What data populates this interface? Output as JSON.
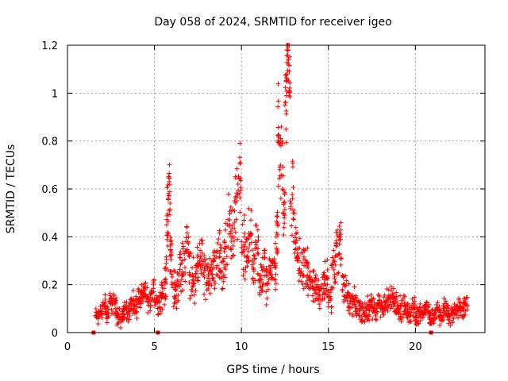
{
  "chart_data": {
    "type": "scatter",
    "title": "Day 058 of 2024, SRMTID for receiver igeo",
    "xlabel": "GPS time / hours",
    "ylabel": "SRMTID / TECUs",
    "xlim": [
      0,
      24
    ],
    "ylim": [
      0,
      1.2
    ],
    "xticks": [
      0,
      5,
      10,
      15,
      20
    ],
    "xtick_labels": [
      "0",
      "5",
      "10",
      "15",
      "20"
    ],
    "yticks": [
      0,
      0.2,
      0.4,
      0.6,
      0.8,
      1.0,
      1.2
    ],
    "ytick_labels": [
      "0",
      "0.2",
      "0.4",
      "0.6",
      "0.8",
      "1",
      "1.2"
    ],
    "grid": true,
    "marker": "plus",
    "color": "#ff0000",
    "series": [
      {
        "name": "SRMTID",
        "x": [
          1.6,
          1.8,
          2.0,
          2.2,
          2.4,
          2.6,
          2.8,
          3.0,
          3.2,
          3.4,
          3.6,
          3.8,
          4.0,
          4.2,
          4.4,
          4.6,
          4.8,
          5.0,
          5.2,
          5.4,
          5.6,
          5.7,
          5.8,
          5.9,
          6.0,
          6.2,
          6.4,
          6.6,
          6.8,
          7.0,
          7.2,
          7.4,
          7.6,
          7.8,
          8.0,
          8.2,
          8.4,
          8.6,
          8.8,
          9.0,
          9.2,
          9.4,
          9.6,
          9.8,
          10.0,
          10.2,
          10.4,
          10.6,
          10.8,
          11.0,
          11.2,
          11.4,
          11.6,
          11.8,
          12.0,
          12.1,
          12.2,
          12.4,
          12.5,
          12.6,
          12.7,
          12.8,
          13.0,
          13.2,
          13.4,
          13.6,
          13.8,
          14.0,
          14.2,
          14.4,
          14.6,
          14.8,
          15.0,
          15.2,
          15.4,
          15.6,
          15.8,
          16.0,
          16.2,
          16.4,
          16.6,
          16.8,
          17.0,
          17.2,
          17.4,
          17.6,
          17.8,
          18.0,
          18.2,
          18.4,
          18.6,
          18.8,
          19.0,
          19.2,
          19.4,
          19.6,
          19.8,
          20.0,
          20.2,
          20.4,
          20.6,
          20.8,
          21.0,
          21.2,
          21.4,
          21.6,
          21.8,
          22.0,
          22.2,
          22.4,
          22.6,
          22.8
        ],
        "y": [
          0.07,
          0.09,
          0.11,
          0.08,
          0.13,
          0.12,
          0.07,
          0.06,
          0.1,
          0.09,
          0.12,
          0.11,
          0.14,
          0.16,
          0.15,
          0.13,
          0.17,
          0.14,
          0.13,
          0.16,
          0.22,
          0.45,
          0.58,
          0.32,
          0.2,
          0.18,
          0.24,
          0.3,
          0.38,
          0.25,
          0.22,
          0.28,
          0.3,
          0.24,
          0.21,
          0.26,
          0.3,
          0.34,
          0.26,
          0.35,
          0.45,
          0.4,
          0.55,
          0.62,
          0.38,
          0.32,
          0.4,
          0.3,
          0.35,
          0.22,
          0.26,
          0.2,
          0.25,
          0.3,
          0.4,
          0.8,
          0.68,
          0.5,
          0.95,
          1.18,
          1.05,
          0.55,
          0.38,
          0.3,
          0.25,
          0.28,
          0.2,
          0.22,
          0.18,
          0.16,
          0.2,
          0.22,
          0.15,
          0.28,
          0.32,
          0.4,
          0.18,
          0.15,
          0.12,
          0.13,
          0.1,
          0.09,
          0.08,
          0.1,
          0.11,
          0.09,
          0.12,
          0.1,
          0.13,
          0.14,
          0.15,
          0.12,
          0.1,
          0.11,
          0.09,
          0.08,
          0.1,
          0.07,
          0.09,
          0.08,
          0.1,
          0.06,
          0.08,
          0.09,
          0.07,
          0.1,
          0.08,
          0.07,
          0.09,
          0.11,
          0.1,
          0.12
        ],
        "spread": [
          0.05,
          0.05,
          0.06,
          0.05,
          0.06,
          0.06,
          0.05,
          0.05,
          0.05,
          0.05,
          0.06,
          0.06,
          0.06,
          0.06,
          0.06,
          0.06,
          0.07,
          0.06,
          0.06,
          0.07,
          0.12,
          0.2,
          0.22,
          0.15,
          0.12,
          0.1,
          0.12,
          0.14,
          0.16,
          0.12,
          0.12,
          0.13,
          0.14,
          0.12,
          0.11,
          0.12,
          0.13,
          0.14,
          0.12,
          0.14,
          0.16,
          0.15,
          0.18,
          0.2,
          0.15,
          0.13,
          0.14,
          0.12,
          0.13,
          0.1,
          0.11,
          0.09,
          0.11,
          0.13,
          0.15,
          0.25,
          0.22,
          0.18,
          0.2,
          0.22,
          0.2,
          0.18,
          0.14,
          0.12,
          0.11,
          0.12,
          0.1,
          0.1,
          0.09,
          0.08,
          0.09,
          0.1,
          0.08,
          0.12,
          0.13,
          0.15,
          0.09,
          0.08,
          0.07,
          0.07,
          0.06,
          0.06,
          0.05,
          0.06,
          0.06,
          0.05,
          0.06,
          0.06,
          0.06,
          0.07,
          0.07,
          0.06,
          0.06,
          0.06,
          0.05,
          0.05,
          0.06,
          0.05,
          0.05,
          0.05,
          0.06,
          0.04,
          0.05,
          0.05,
          0.05,
          0.05,
          0.05,
          0.05,
          0.05,
          0.06,
          0.05,
          0.06
        ]
      }
    ],
    "zero_markers_x": [
      1.5,
      5.2,
      20.9
    ]
  }
}
